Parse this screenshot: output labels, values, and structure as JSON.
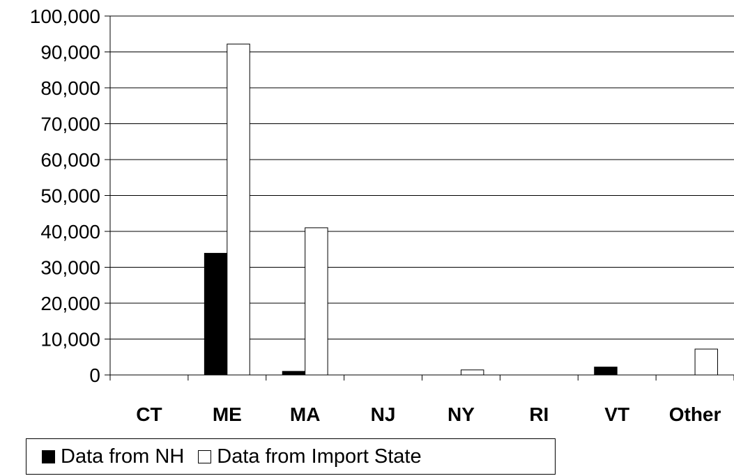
{
  "chart_data": {
    "type": "bar",
    "categories": [
      "CT",
      "ME",
      "MA",
      "NJ",
      "NY",
      "RI",
      "VT",
      "Other"
    ],
    "series": [
      {
        "name": "Data from NH",
        "values": [
          0,
          33900,
          1000,
          0,
          0,
          0,
          2200,
          0
        ],
        "color": "#000000"
      },
      {
        "name": "Data from Import State",
        "values": [
          0,
          92200,
          41000,
          0,
          1400,
          0,
          0,
          7200
        ],
        "color": "#ffffff"
      }
    ],
    "ylim": [
      0,
      100000
    ],
    "yticks": [
      "0",
      "10,000",
      "20,000",
      "30,000",
      "40,000",
      "50,000",
      "60,000",
      "70,000",
      "80,000",
      "90,000",
      "100,000"
    ],
    "grid": true,
    "legend_position": "bottom-left"
  }
}
